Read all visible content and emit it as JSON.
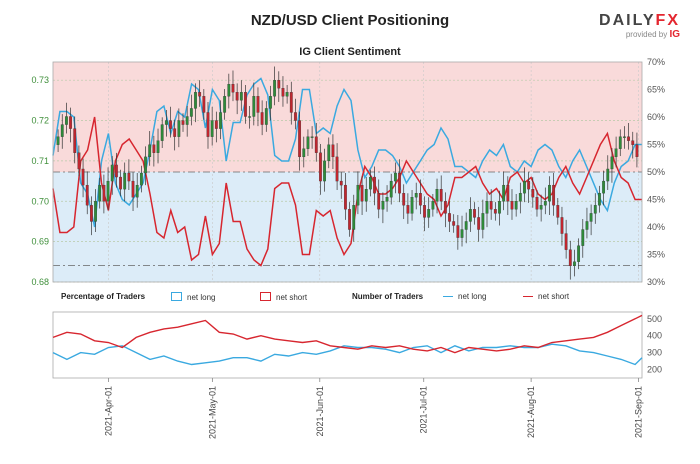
{
  "header": {
    "title": "NZD/USD Client Positioning",
    "subtitle": "IG Client Sentiment",
    "brand_main": "DAILY",
    "brand_accent": "FX",
    "brand_sub": "provided by",
    "brand_ig": "IG"
  },
  "colors": {
    "net_long": "#3aa9e0",
    "net_short": "#d7262f",
    "short_zone": "#f9dada",
    "long_zone": "#dcecf8",
    "price_text": "#3f8f3a"
  },
  "legend": {
    "pct_title": "Percentage of Traders",
    "pct_long": "net long",
    "pct_short": "net short",
    "num_title": "Number of Traders",
    "num_long": "net long",
    "num_short": "net short"
  },
  "chart_data": [
    {
      "type": "candlestick",
      "name": "price",
      "y_ticks": [
        0.68,
        0.69,
        0.7,
        0.71,
        0.72,
        0.73
      ],
      "y_tick_labels": [
        "0.68",
        "0.69",
        "0.70",
        "0.71",
        "0.72",
        "0.73"
      ],
      "ylim": [
        0.68,
        0.7345
      ],
      "x_range_days": [
        0,
        170
      ],
      "closes": [
        0.716,
        0.719,
        0.721,
        0.718,
        0.712,
        0.708,
        0.704,
        0.699,
        0.695,
        0.7,
        0.704,
        0.7,
        0.705,
        0.709,
        0.706,
        0.703,
        0.707,
        0.705,
        0.701,
        0.704,
        0.707,
        0.711,
        0.714,
        0.712,
        0.715,
        0.719,
        0.72,
        0.718,
        0.716,
        0.72,
        0.719,
        0.721,
        0.723,
        0.727,
        0.726,
        0.722,
        0.716,
        0.72,
        0.718,
        0.722,
        0.726,
        0.729,
        0.727,
        0.725,
        0.727,
        0.721,
        0.721,
        0.726,
        0.722,
        0.719,
        0.723,
        0.726,
        0.73,
        0.728,
        0.726,
        0.727,
        0.722,
        0.72,
        0.711,
        0.713,
        0.716,
        0.716,
        0.712,
        0.705,
        0.71,
        0.714,
        0.711,
        0.705,
        0.704,
        0.698,
        0.693,
        0.699,
        0.704,
        0.7,
        0.703,
        0.706,
        0.702,
        0.698,
        0.7,
        0.701,
        0.705,
        0.707,
        0.702,
        0.699,
        0.697,
        0.701,
        0.702,
        0.699,
        0.696,
        0.698,
        0.7,
        0.703,
        0.7,
        0.697,
        0.695,
        0.694,
        0.691,
        0.693,
        0.695,
        0.698,
        0.696,
        0.693,
        0.697,
        0.7,
        0.698,
        0.697,
        0.7,
        0.704,
        0.7,
        0.698,
        0.7,
        0.702,
        0.705,
        0.703,
        0.701,
        0.698,
        0.699,
        0.7,
        0.704,
        0.699,
        0.696,
        0.692,
        0.688,
        0.684,
        0.685,
        0.689,
        0.693,
        0.695,
        0.697,
        0.699,
        0.702,
        0.705,
        0.708,
        0.711,
        0.713,
        0.716,
        0.716,
        0.715,
        0.714,
        0.711
      ]
    },
    {
      "type": "line",
      "name": "net-long-percent",
      "y_ticks": [
        30,
        35,
        40,
        45,
        50,
        55,
        60,
        65,
        70
      ],
      "y_tick_labels": [
        "30%",
        "35%",
        "40%",
        "45%",
        "50%",
        "55%",
        "60%",
        "65%",
        "70%"
      ],
      "ylim": [
        30,
        70
      ],
      "reference_lines": [
        50,
        33
      ],
      "series": [
        {
          "name": "net long",
          "x": [
            0,
            2,
            4,
            6,
            8,
            10,
            12,
            14,
            16,
            18,
            20,
            22,
            24,
            26,
            28,
            30,
            32,
            34,
            36,
            38,
            40,
            42,
            44,
            46,
            48,
            50,
            52,
            54,
            56,
            58,
            60,
            62,
            64,
            66,
            68,
            70,
            72,
            74,
            76,
            78,
            80,
            82,
            84,
            86,
            88,
            90,
            92,
            94,
            96,
            98,
            100,
            102,
            104,
            106,
            108,
            110,
            112,
            114,
            116,
            118,
            120,
            122,
            124,
            126,
            128,
            130,
            132,
            134,
            136,
            138,
            140,
            142,
            144,
            146,
            148,
            150,
            152,
            154,
            156,
            158,
            160,
            162,
            164,
            166,
            168,
            170
          ],
          "values": [
            53,
            61,
            61,
            60,
            48,
            46,
            40,
            52,
            57,
            48,
            45,
            44,
            46,
            48,
            54,
            61,
            62,
            57,
            61,
            60,
            66,
            65,
            58,
            65,
            63,
            52,
            59,
            59,
            64,
            66,
            67,
            64,
            53,
            52,
            52,
            56,
            65,
            65,
            57,
            58,
            57,
            62,
            65,
            63,
            54,
            49,
            51,
            54,
            54,
            53,
            51,
            48,
            50,
            52,
            54,
            55,
            58,
            56,
            51,
            51,
            50,
            49,
            52,
            54,
            53,
            55,
            51,
            50,
            52,
            51,
            54,
            55,
            54,
            51,
            49,
            52,
            54,
            51,
            48,
            45,
            43,
            48,
            51,
            52,
            55,
            55
          ]
        },
        {
          "name": "net short",
          "x": [
            0,
            2,
            4,
            6,
            8,
            10,
            12,
            14,
            16,
            18,
            20,
            22,
            24,
            26,
            28,
            30,
            32,
            34,
            36,
            38,
            40,
            42,
            44,
            46,
            48,
            50,
            52,
            54,
            56,
            58,
            60,
            62,
            64,
            66,
            68,
            70,
            72,
            74,
            76,
            78,
            80,
            82,
            84,
            86,
            88,
            90,
            92,
            94,
            96,
            98,
            100,
            102,
            104,
            106,
            108,
            110,
            112,
            114,
            116,
            118,
            120,
            122,
            124,
            126,
            128,
            130,
            132,
            134,
            136,
            138,
            140,
            142,
            144,
            146,
            148,
            150,
            152,
            154,
            156,
            158,
            160,
            162,
            164,
            166,
            168,
            170
          ],
          "values": [
            47,
            39,
            39,
            40,
            52,
            54,
            60,
            48,
            43,
            52,
            55,
            56,
            54,
            52,
            46,
            39,
            38,
            43,
            39,
            40,
            34,
            35,
            42,
            35,
            37,
            48,
            41,
            41,
            36,
            34,
            33,
            36,
            47,
            48,
            48,
            44,
            35,
            35,
            43,
            42,
            43,
            38,
            35,
            37,
            46,
            51,
            49,
            46,
            46,
            47,
            49,
            52,
            50,
            48,
            46,
            45,
            42,
            44,
            49,
            49,
            50,
            51,
            48,
            46,
            47,
            45,
            49,
            50,
            48,
            49,
            46,
            45,
            46,
            49,
            51,
            48,
            46,
            49,
            52,
            55,
            57,
            52,
            49,
            48,
            45,
            45
          ]
        }
      ]
    },
    {
      "type": "line",
      "name": "number-of-traders",
      "y_ticks": [
        200,
        300,
        400,
        500
      ],
      "y_tick_labels": [
        "200",
        "300",
        "400",
        "500"
      ],
      "ylim": [
        150,
        540
      ],
      "x_tick_days": [
        16,
        46,
        77,
        107,
        138,
        169
      ],
      "x_tick_labels": [
        "2021-Apr-01",
        "2021-May-01",
        "2021-Jun-01",
        "2021-Jul-01",
        "2021-Aug-01",
        "2021-Sep-01"
      ],
      "series": [
        {
          "name": "net long",
          "x": [
            0,
            4,
            8,
            12,
            16,
            20,
            24,
            28,
            32,
            36,
            40,
            44,
            48,
            52,
            56,
            60,
            64,
            68,
            72,
            76,
            80,
            84,
            88,
            92,
            96,
            100,
            104,
            108,
            112,
            116,
            120,
            124,
            128,
            132,
            136,
            140,
            144,
            148,
            152,
            156,
            160,
            164,
            168,
            170
          ],
          "values": [
            300,
            260,
            300,
            290,
            330,
            340,
            300,
            260,
            280,
            250,
            230,
            240,
            250,
            270,
            270,
            250,
            290,
            280,
            300,
            290,
            310,
            340,
            330,
            330,
            320,
            300,
            330,
            340,
            300,
            340,
            310,
            330,
            330,
            340,
            330,
            330,
            350,
            340,
            310,
            300,
            280,
            260,
            230,
            270
          ]
        },
        {
          "name": "net short",
          "x": [
            0,
            4,
            8,
            12,
            16,
            20,
            24,
            28,
            32,
            36,
            40,
            44,
            48,
            52,
            56,
            60,
            64,
            68,
            72,
            76,
            80,
            84,
            88,
            92,
            96,
            100,
            104,
            108,
            112,
            116,
            120,
            124,
            128,
            132,
            136,
            140,
            144,
            148,
            152,
            156,
            160,
            164,
            168,
            170
          ],
          "values": [
            390,
            420,
            410,
            370,
            360,
            330,
            390,
            420,
            440,
            450,
            470,
            490,
            420,
            410,
            380,
            400,
            380,
            370,
            360,
            370,
            340,
            330,
            320,
            340,
            330,
            340,
            320,
            310,
            330,
            300,
            330,
            320,
            310,
            320,
            340,
            330,
            360,
            370,
            380,
            390,
            420,
            460,
            500,
            520
          ]
        }
      ]
    }
  ]
}
